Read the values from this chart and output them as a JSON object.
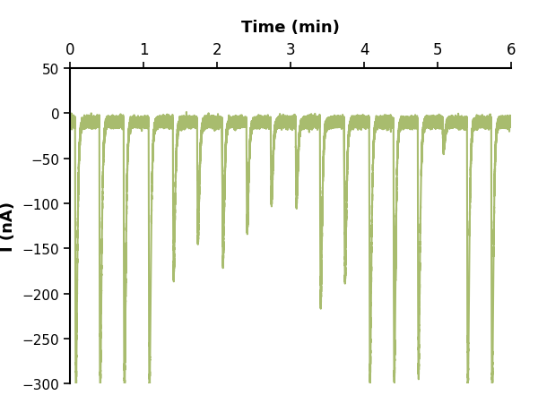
{
  "title": "Time (min)",
  "ylabel": "I (nA)",
  "xlim": [
    0,
    6
  ],
  "ylim": [
    -300,
    50
  ],
  "yticks": [
    50,
    0,
    -50,
    -100,
    -150,
    -200,
    -250,
    -300
  ],
  "xticks_top": [
    0,
    1,
    2,
    3,
    4,
    5,
    6
  ],
  "line_color": "#a8bc6e",
  "line_width": 1.5,
  "baseline": -10,
  "noise_amplitude": 2.5,
  "spikes": [
    {
      "t": 0.07,
      "peak": -300
    },
    {
      "t": 0.4,
      "peak": -300
    },
    {
      "t": 0.73,
      "peak": -300
    },
    {
      "t": 1.07,
      "peak": -300
    },
    {
      "t": 1.4,
      "peak": -170
    },
    {
      "t": 1.73,
      "peak": -130
    },
    {
      "t": 2.07,
      "peak": -155
    },
    {
      "t": 2.4,
      "peak": -120
    },
    {
      "t": 2.73,
      "peak": -88
    },
    {
      "t": 3.07,
      "peak": -90
    },
    {
      "t": 3.4,
      "peak": -200
    },
    {
      "t": 3.73,
      "peak": -175
    },
    {
      "t": 4.07,
      "peak": -285
    },
    {
      "t": 4.4,
      "peak": -285
    },
    {
      "t": 4.73,
      "peak": -280
    },
    {
      "t": 5.07,
      "peak": -30
    },
    {
      "t": 5.4,
      "peak": -295
    },
    {
      "t": 5.73,
      "peak": -295
    }
  ],
  "tau_rise": 0.003,
  "tau_fall": 0.012,
  "background_color": "#ffffff"
}
